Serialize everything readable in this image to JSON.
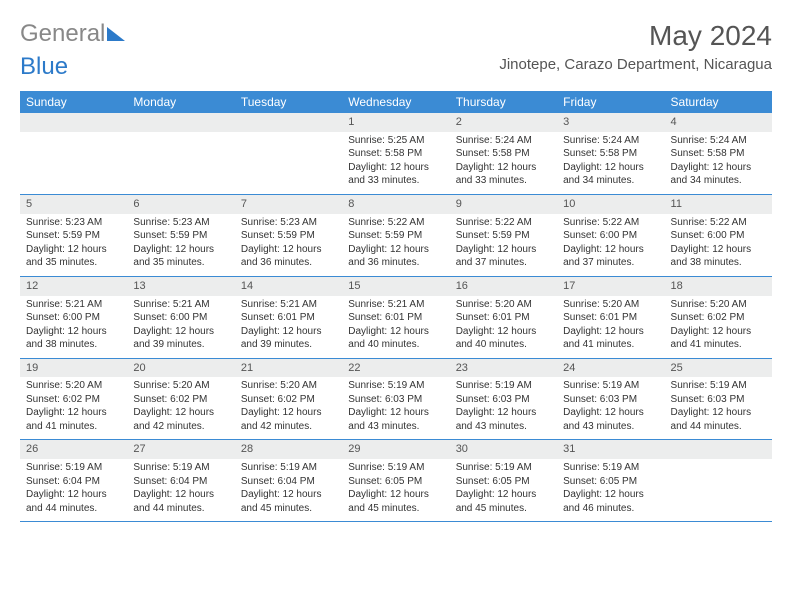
{
  "logo": {
    "text_general": "General",
    "text_blue": "Blue"
  },
  "title": "May 2024",
  "location": "Jinotepe, Carazo Department, Nicaragua",
  "weekdays": [
    "Sunday",
    "Monday",
    "Tuesday",
    "Wednesday",
    "Thursday",
    "Friday",
    "Saturday"
  ],
  "colors": {
    "header_bg": "#3b8bd4",
    "header_text": "#ffffff",
    "daynum_bg": "#eceded",
    "accent": "#2c7ac9"
  },
  "weeks": [
    [
      {
        "n": "",
        "sr": "",
        "ss": "",
        "dl": ""
      },
      {
        "n": "",
        "sr": "",
        "ss": "",
        "dl": ""
      },
      {
        "n": "",
        "sr": "",
        "ss": "",
        "dl": ""
      },
      {
        "n": "1",
        "sr": "5:25 AM",
        "ss": "5:58 PM",
        "dl": "12 hours and 33 minutes."
      },
      {
        "n": "2",
        "sr": "5:24 AM",
        "ss": "5:58 PM",
        "dl": "12 hours and 33 minutes."
      },
      {
        "n": "3",
        "sr": "5:24 AM",
        "ss": "5:58 PM",
        "dl": "12 hours and 34 minutes."
      },
      {
        "n": "4",
        "sr": "5:24 AM",
        "ss": "5:58 PM",
        "dl": "12 hours and 34 minutes."
      }
    ],
    [
      {
        "n": "5",
        "sr": "5:23 AM",
        "ss": "5:59 PM",
        "dl": "12 hours and 35 minutes."
      },
      {
        "n": "6",
        "sr": "5:23 AM",
        "ss": "5:59 PM",
        "dl": "12 hours and 35 minutes."
      },
      {
        "n": "7",
        "sr": "5:23 AM",
        "ss": "5:59 PM",
        "dl": "12 hours and 36 minutes."
      },
      {
        "n": "8",
        "sr": "5:22 AM",
        "ss": "5:59 PM",
        "dl": "12 hours and 36 minutes."
      },
      {
        "n": "9",
        "sr": "5:22 AM",
        "ss": "5:59 PM",
        "dl": "12 hours and 37 minutes."
      },
      {
        "n": "10",
        "sr": "5:22 AM",
        "ss": "6:00 PM",
        "dl": "12 hours and 37 minutes."
      },
      {
        "n": "11",
        "sr": "5:22 AM",
        "ss": "6:00 PM",
        "dl": "12 hours and 38 minutes."
      }
    ],
    [
      {
        "n": "12",
        "sr": "5:21 AM",
        "ss": "6:00 PM",
        "dl": "12 hours and 38 minutes."
      },
      {
        "n": "13",
        "sr": "5:21 AM",
        "ss": "6:00 PM",
        "dl": "12 hours and 39 minutes."
      },
      {
        "n": "14",
        "sr": "5:21 AM",
        "ss": "6:01 PM",
        "dl": "12 hours and 39 minutes."
      },
      {
        "n": "15",
        "sr": "5:21 AM",
        "ss": "6:01 PM",
        "dl": "12 hours and 40 minutes."
      },
      {
        "n": "16",
        "sr": "5:20 AM",
        "ss": "6:01 PM",
        "dl": "12 hours and 40 minutes."
      },
      {
        "n": "17",
        "sr": "5:20 AM",
        "ss": "6:01 PM",
        "dl": "12 hours and 41 minutes."
      },
      {
        "n": "18",
        "sr": "5:20 AM",
        "ss": "6:02 PM",
        "dl": "12 hours and 41 minutes."
      }
    ],
    [
      {
        "n": "19",
        "sr": "5:20 AM",
        "ss": "6:02 PM",
        "dl": "12 hours and 41 minutes."
      },
      {
        "n": "20",
        "sr": "5:20 AM",
        "ss": "6:02 PM",
        "dl": "12 hours and 42 minutes."
      },
      {
        "n": "21",
        "sr": "5:20 AM",
        "ss": "6:02 PM",
        "dl": "12 hours and 42 minutes."
      },
      {
        "n": "22",
        "sr": "5:19 AM",
        "ss": "6:03 PM",
        "dl": "12 hours and 43 minutes."
      },
      {
        "n": "23",
        "sr": "5:19 AM",
        "ss": "6:03 PM",
        "dl": "12 hours and 43 minutes."
      },
      {
        "n": "24",
        "sr": "5:19 AM",
        "ss": "6:03 PM",
        "dl": "12 hours and 43 minutes."
      },
      {
        "n": "25",
        "sr": "5:19 AM",
        "ss": "6:03 PM",
        "dl": "12 hours and 44 minutes."
      }
    ],
    [
      {
        "n": "26",
        "sr": "5:19 AM",
        "ss": "6:04 PM",
        "dl": "12 hours and 44 minutes."
      },
      {
        "n": "27",
        "sr": "5:19 AM",
        "ss": "6:04 PM",
        "dl": "12 hours and 44 minutes."
      },
      {
        "n": "28",
        "sr": "5:19 AM",
        "ss": "6:04 PM",
        "dl": "12 hours and 45 minutes."
      },
      {
        "n": "29",
        "sr": "5:19 AM",
        "ss": "6:05 PM",
        "dl": "12 hours and 45 minutes."
      },
      {
        "n": "30",
        "sr": "5:19 AM",
        "ss": "6:05 PM",
        "dl": "12 hours and 45 minutes."
      },
      {
        "n": "31",
        "sr": "5:19 AM",
        "ss": "6:05 PM",
        "dl": "12 hours and 46 minutes."
      },
      {
        "n": "",
        "sr": "",
        "ss": "",
        "dl": ""
      }
    ]
  ],
  "labels": {
    "sunrise": "Sunrise:",
    "sunset": "Sunset:",
    "daylight": "Daylight:"
  }
}
